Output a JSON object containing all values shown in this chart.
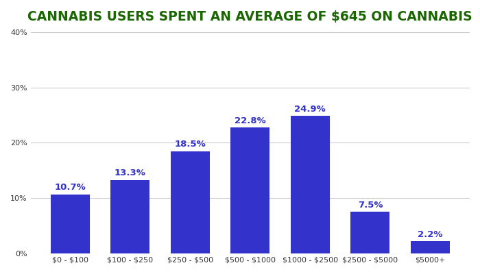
{
  "title": "CANNABIS USERS SPENT AN AVERAGE OF $645 ON CANNABIS",
  "categories": [
    "$0 - $100",
    "$100 - $250",
    "$250 - $500",
    "$500 - $1000",
    "$1000 - $2500",
    "$2500 - $5000",
    "$5000+"
  ],
  "values": [
    10.7,
    13.3,
    18.5,
    22.8,
    24.9,
    7.5,
    2.2
  ],
  "bar_color": "#3333CC",
  "label_color": "#3333CC",
  "title_color": "#1a6600",
  "background_color": "#FFFFFF",
  "ylim": [
    0,
    40
  ],
  "yticks": [
    0,
    10,
    20,
    30,
    40
  ],
  "title_fontsize": 13.5,
  "label_fontsize": 9.5,
  "tick_fontsize": 8,
  "grid_color": "#CCCCCC",
  "bar_width": 0.65
}
